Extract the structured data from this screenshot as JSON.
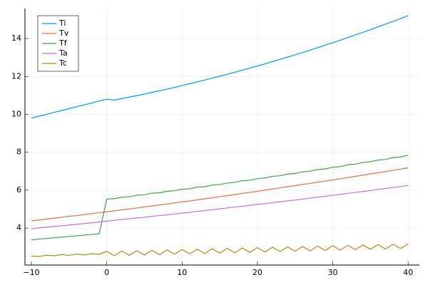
{
  "chart_data": {
    "type": "line",
    "x": [
      -10,
      -9,
      -8,
      -7,
      -6,
      -5,
      -4,
      -3,
      -2,
      -1,
      0,
      1,
      2,
      3,
      4,
      5,
      6,
      7,
      8,
      9,
      10,
      11,
      12,
      13,
      14,
      15,
      16,
      17,
      18,
      19,
      20,
      21,
      22,
      23,
      24,
      25,
      26,
      27,
      28,
      29,
      30,
      31,
      32,
      33,
      34,
      35,
      36,
      37,
      38,
      39,
      40
    ],
    "series": [
      {
        "name": "Ti",
        "color": "#009af9",
        "values": [
          9.8,
          9.9,
          10.0,
          10.1,
          10.2,
          10.3,
          10.4,
          10.5,
          10.6,
          10.7,
          10.8,
          10.75,
          10.83,
          10.91,
          10.99,
          11.07,
          11.16,
          11.24,
          11.33,
          11.42,
          11.52,
          11.61,
          11.71,
          11.81,
          11.91,
          12.01,
          12.11,
          12.22,
          12.33,
          12.44,
          12.55,
          12.66,
          12.78,
          12.9,
          13.02,
          13.14,
          13.26,
          13.39,
          13.52,
          13.65,
          13.78,
          13.91,
          14.05,
          14.19,
          14.33,
          14.47,
          14.61,
          14.76,
          14.9,
          15.05,
          15.2
        ]
      },
      {
        "name": "Tv",
        "color": "#e26f46",
        "values": [
          4.38,
          4.43,
          4.47,
          4.52,
          4.57,
          4.62,
          4.66,
          4.71,
          4.76,
          4.81,
          4.86,
          4.91,
          4.96,
          5.01,
          5.06,
          5.12,
          5.17,
          5.22,
          5.27,
          5.33,
          5.38,
          5.43,
          5.49,
          5.54,
          5.6,
          5.66,
          5.71,
          5.77,
          5.83,
          5.88,
          5.94,
          6.0,
          6.06,
          6.12,
          6.18,
          6.24,
          6.3,
          6.36,
          6.42,
          6.48,
          6.54,
          6.6,
          6.67,
          6.73,
          6.79,
          6.86,
          6.92,
          6.98,
          7.05,
          7.11,
          7.18
        ]
      },
      {
        "name": "Tf",
        "color": "#3da44d",
        "values": [
          3.38,
          3.42,
          3.45,
          3.49,
          3.52,
          3.56,
          3.59,
          3.63,
          3.66,
          3.7,
          5.53,
          5.55,
          5.63,
          5.65,
          5.73,
          5.76,
          5.84,
          5.86,
          5.94,
          5.97,
          6.05,
          6.07,
          6.16,
          6.18,
          6.27,
          6.3,
          6.38,
          6.41,
          6.5,
          6.52,
          6.61,
          6.64,
          6.73,
          6.76,
          6.85,
          6.88,
          6.97,
          7.0,
          7.09,
          7.12,
          7.21,
          7.24,
          7.34,
          7.37,
          7.46,
          7.5,
          7.59,
          7.62,
          7.72,
          7.75,
          7.85
        ]
      },
      {
        "name": "Ta",
        "color": "#c271d2",
        "values": [
          3.97,
          4.01,
          4.05,
          4.09,
          4.12,
          4.16,
          4.2,
          4.24,
          4.28,
          4.32,
          4.37,
          4.41,
          4.45,
          4.49,
          4.53,
          4.57,
          4.62,
          4.66,
          4.7,
          4.75,
          4.79,
          4.83,
          4.88,
          4.92,
          4.97,
          5.01,
          5.06,
          5.11,
          5.15,
          5.2,
          5.25,
          5.29,
          5.34,
          5.39,
          5.44,
          5.48,
          5.53,
          5.58,
          5.63,
          5.68,
          5.73,
          5.78,
          5.83,
          5.88,
          5.93,
          5.98,
          6.04,
          6.09,
          6.14,
          6.19,
          6.25
        ]
      },
      {
        "name": "Tc",
        "color": "#ac8e18",
        "values": [
          2.52,
          2.5,
          2.57,
          2.54,
          2.6,
          2.56,
          2.63,
          2.58,
          2.65,
          2.62,
          2.77,
          2.54,
          2.79,
          2.56,
          2.81,
          2.58,
          2.83,
          2.6,
          2.85,
          2.62,
          2.87,
          2.64,
          2.89,
          2.66,
          2.91,
          2.68,
          2.93,
          2.7,
          2.95,
          2.72,
          2.97,
          2.74,
          2.99,
          2.76,
          3.01,
          2.78,
          3.03,
          2.8,
          3.05,
          2.82,
          3.07,
          2.84,
          3.09,
          2.86,
          3.11,
          2.88,
          3.13,
          2.9,
          3.15,
          2.92,
          3.17
        ]
      }
    ],
    "xlim": [
      -10.85,
      41.5
    ],
    "ylim": [
      2.05,
      15.58
    ],
    "xticks": [
      {
        "value": -10,
        "label": "−10"
      },
      0,
      10,
      20,
      30,
      40
    ],
    "yticks": [
      4,
      6,
      8,
      10,
      12,
      14
    ],
    "grid": true,
    "legend": "top-left"
  }
}
